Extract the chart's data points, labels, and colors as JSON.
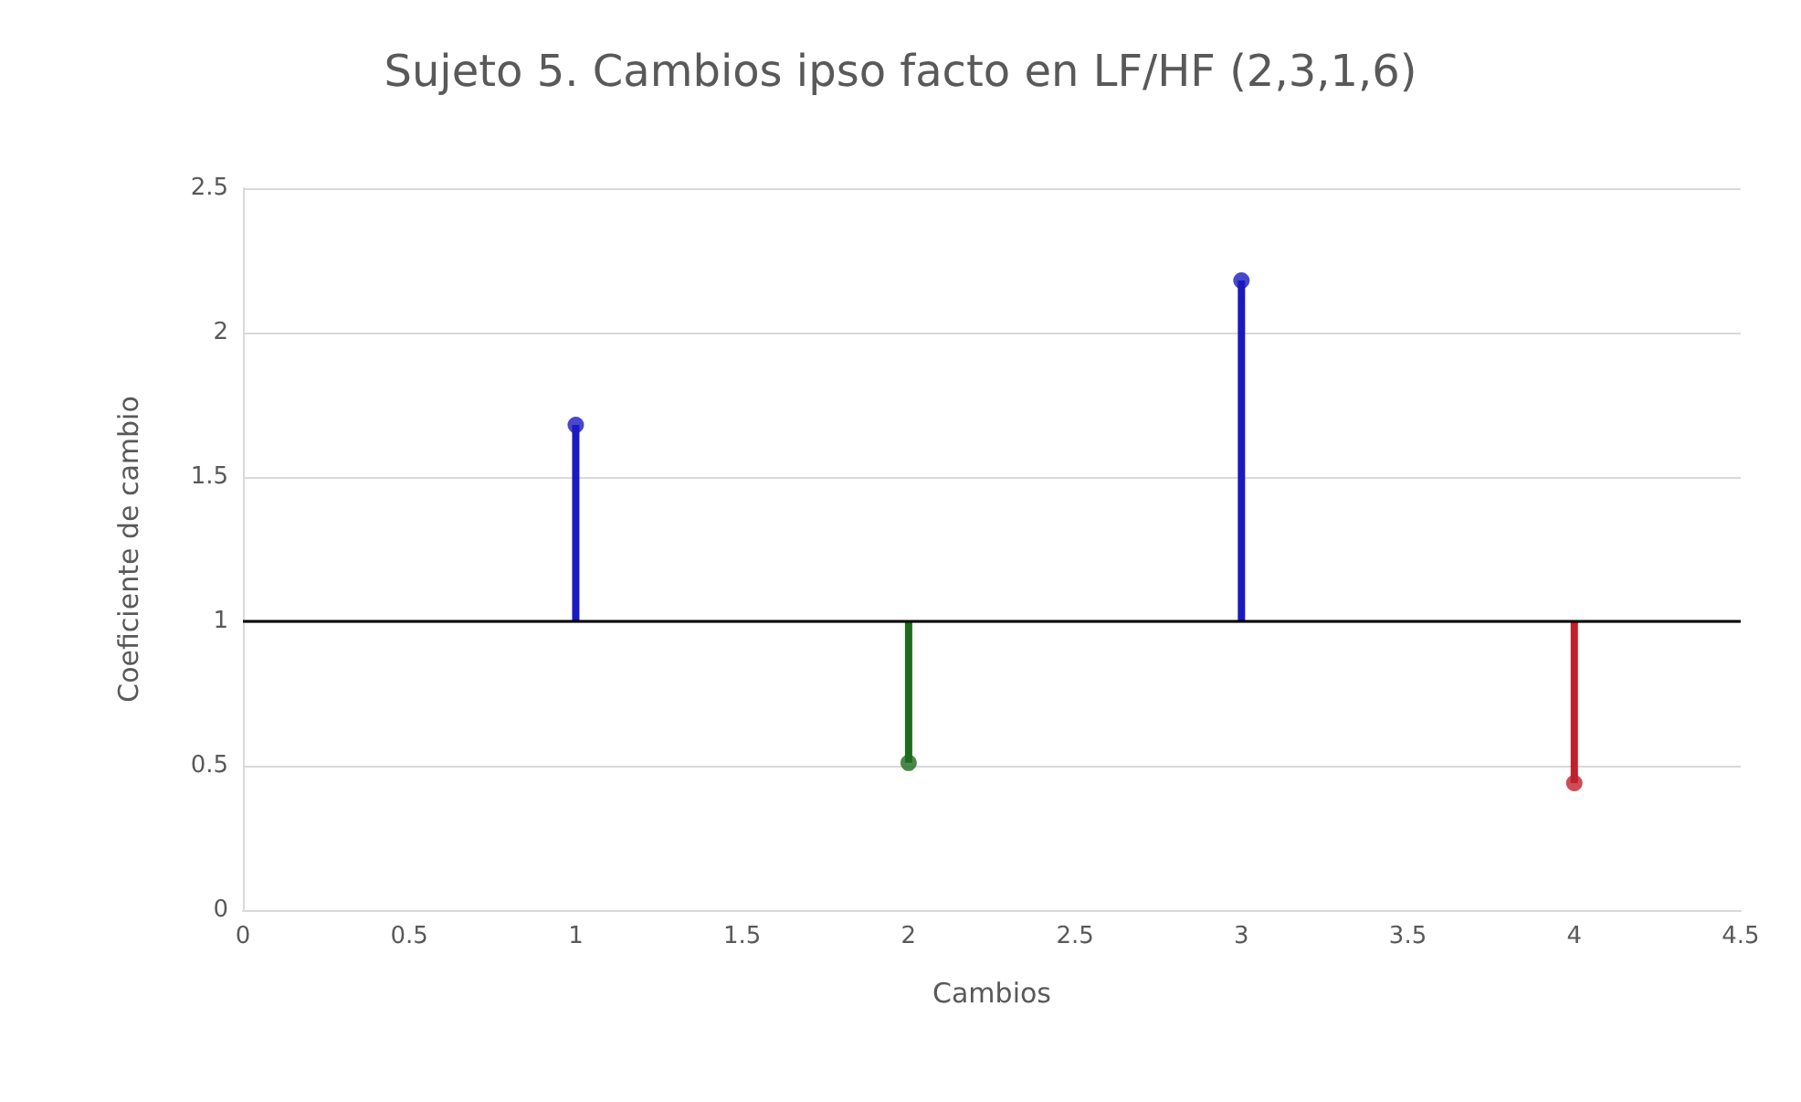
{
  "chart_data": {
    "type": "scatter",
    "title": "Sujeto 5. Cambios ipso facto en LF/HF (2,3,1,6)",
    "xlabel": "Cambios",
    "ylabel": "Coeficiente de cambio",
    "series": [
      {
        "type": "line",
        "x": [
          1,
          1
        ],
        "values": [
          1,
          1.68
        ],
        "color": "#1a1ac0",
        "marker": "none"
      },
      {
        "type": "line",
        "x": [
          2,
          2
        ],
        "values": [
          1,
          0.51
        ],
        "color": "#1e6b1e",
        "marker": "none"
      },
      {
        "type": "line",
        "x": [
          3,
          3
        ],
        "values": [
          1,
          2.18
        ],
        "color": "#1a1ac0",
        "marker": "none"
      },
      {
        "type": "line",
        "x": [
          4,
          4
        ],
        "values": [
          1,
          0.44
        ],
        "color": "#c0202a",
        "marker": "none"
      },
      {
        "x": [
          1,
          2,
          3,
          4
        ],
        "values": [
          1.68,
          0.51,
          2.18,
          0.44
        ],
        "colors": [
          "#1a1ac0",
          "#1e6b1e",
          "#1a1ac0",
          "#c0202a"
        ],
        "marker": "circle"
      }
    ],
    "xlim": [
      0,
      4.5
    ],
    "xticks": [
      0,
      0.5,
      1,
      1.5,
      2,
      2.5,
      3,
      3.5,
      4,
      4.5
    ],
    "ylim": [
      0,
      2.5
    ],
    "yticks": [
      0,
      0.5,
      1,
      1.5,
      2,
      2.5
    ],
    "ref_lines": [
      {
        "axis": "y",
        "value": 1,
        "color": "#000000"
      }
    ],
    "grid": "y"
  }
}
